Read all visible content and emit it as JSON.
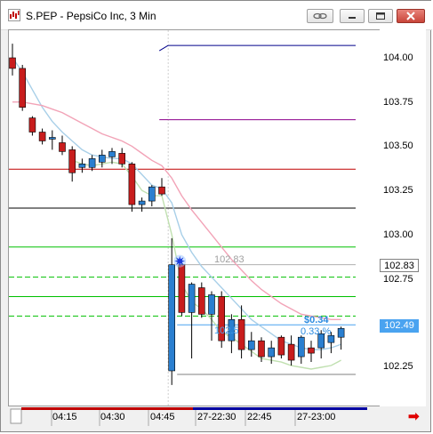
{
  "window": {
    "title": "S.PEP - PepsiCo Inc, 3 Min",
    "controls": [
      "link-icon",
      "minimize-icon",
      "maximize-icon",
      "close-icon"
    ]
  },
  "price_axis": {
    "ticks": [
      "104.00",
      "103.75",
      "103.50",
      "103.25",
      "103.00",
      "102.75",
      "102.25"
    ],
    "last_price_box": "102.83",
    "current_price_box": "102.49"
  },
  "time_axis": {
    "labels": [
      "04:15",
      "04:30",
      "04:45",
      "27-22:30",
      "22:45",
      "27-23:00"
    ]
  },
  "annotations": {
    "marker_price": "102.83",
    "dotted_price": "102.5",
    "change_value": "$0.34",
    "change_percent": "0.33 %"
  },
  "chart_data": {
    "type": "candlestick",
    "ylim": [
      102.1,
      104.2
    ],
    "candles": [
      {
        "o": 104.0,
        "h": 104.08,
        "l": 103.9,
        "c": 103.94,
        "dir": "down"
      },
      {
        "o": 103.94,
        "h": 103.96,
        "l": 103.7,
        "c": 103.72,
        "dir": "down"
      },
      {
        "o": 103.66,
        "h": 103.67,
        "l": 103.56,
        "c": 103.58,
        "dir": "down"
      },
      {
        "o": 103.58,
        "h": 103.6,
        "l": 103.51,
        "c": 103.53,
        "dir": "down"
      },
      {
        "o": 103.54,
        "h": 103.59,
        "l": 103.48,
        "c": 103.55,
        "dir": "up"
      },
      {
        "o": 103.52,
        "h": 103.56,
        "l": 103.45,
        "c": 103.47,
        "dir": "down"
      },
      {
        "o": 103.48,
        "h": 103.5,
        "l": 103.3,
        "c": 103.35,
        "dir": "down"
      },
      {
        "o": 103.38,
        "h": 103.43,
        "l": 103.35,
        "c": 103.4,
        "dir": "up"
      },
      {
        "o": 103.38,
        "h": 103.45,
        "l": 103.36,
        "c": 103.43,
        "dir": "up"
      },
      {
        "o": 103.41,
        "h": 103.48,
        "l": 103.38,
        "c": 103.45,
        "dir": "up"
      },
      {
        "o": 103.44,
        "h": 103.49,
        "l": 103.4,
        "c": 103.47,
        "dir": "up"
      },
      {
        "o": 103.46,
        "h": 103.49,
        "l": 103.38,
        "c": 103.4,
        "dir": "down"
      },
      {
        "o": 103.4,
        "h": 103.41,
        "l": 103.13,
        "c": 103.17,
        "dir": "down"
      },
      {
        "o": 103.17,
        "h": 103.21,
        "l": 103.13,
        "c": 103.19,
        "dir": "up"
      },
      {
        "o": 103.19,
        "h": 103.28,
        "l": 103.16,
        "c": 103.27,
        "dir": "up"
      },
      {
        "o": 103.27,
        "h": 103.32,
        "l": 103.22,
        "c": 103.23,
        "dir": "down"
      },
      {
        "o": 102.23,
        "h": 102.98,
        "l": 102.15,
        "c": 102.83,
        "dir": "up"
      },
      {
        "o": 102.83,
        "h": 102.86,
        "l": 102.54,
        "c": 102.56,
        "dir": "down"
      },
      {
        "o": 102.56,
        "h": 102.73,
        "l": 102.3,
        "c": 102.72,
        "dir": "up"
      },
      {
        "o": 102.7,
        "h": 102.73,
        "l": 102.53,
        "c": 102.55,
        "dir": "down"
      },
      {
        "o": 102.55,
        "h": 102.68,
        "l": 102.4,
        "c": 102.66,
        "dir": "up"
      },
      {
        "o": 102.65,
        "h": 102.68,
        "l": 102.36,
        "c": 102.4,
        "dir": "down"
      },
      {
        "o": 102.4,
        "h": 102.55,
        "l": 102.33,
        "c": 102.52,
        "dir": "up"
      },
      {
        "o": 102.52,
        "h": 102.6,
        "l": 102.3,
        "c": 102.35,
        "dir": "down"
      },
      {
        "o": 102.35,
        "h": 102.45,
        "l": 102.31,
        "c": 102.4,
        "dir": "up"
      },
      {
        "o": 102.4,
        "h": 102.42,
        "l": 102.28,
        "c": 102.31,
        "dir": "down"
      },
      {
        "o": 102.31,
        "h": 102.4,
        "l": 102.27,
        "c": 102.36,
        "dir": "up"
      },
      {
        "o": 102.42,
        "h": 102.43,
        "l": 102.3,
        "c": 102.32,
        "dir": "down"
      },
      {
        "o": 102.38,
        "h": 102.43,
        "l": 102.26,
        "c": 102.29,
        "dir": "down"
      },
      {
        "o": 102.31,
        "h": 102.43,
        "l": 102.27,
        "c": 102.42,
        "dir": "up"
      },
      {
        "o": 102.36,
        "h": 102.4,
        "l": 102.28,
        "c": 102.33,
        "dir": "down"
      },
      {
        "o": 102.36,
        "h": 102.46,
        "l": 102.3,
        "c": 102.44,
        "dir": "up"
      },
      {
        "o": 102.39,
        "h": 102.45,
        "l": 102.33,
        "c": 102.43,
        "dir": "up"
      },
      {
        "o": 102.42,
        "h": 102.48,
        "l": 102.35,
        "c": 102.47,
        "dir": "up"
      }
    ],
    "levels": [
      {
        "price": 104.07,
        "color": "#00008b",
        "style": "solid",
        "from": "mid"
      },
      {
        "price": 103.65,
        "color": "#8b008b",
        "style": "solid",
        "from": "mid"
      },
      {
        "price": 103.37,
        "color": "#c00000",
        "style": "solid",
        "from": "start"
      },
      {
        "price": 103.15,
        "color": "#000000",
        "style": "solid",
        "from": "start"
      },
      {
        "price": 102.93,
        "color": "#00c000",
        "style": "solid",
        "from": "start"
      },
      {
        "price": 102.76,
        "color": "#00c000",
        "style": "dashed",
        "from": "start"
      },
      {
        "price": 102.65,
        "color": "#00c000",
        "style": "solid",
        "from": "start"
      },
      {
        "price": 102.54,
        "color": "#00c000",
        "style": "dashed",
        "from": "start"
      },
      {
        "price": 102.83,
        "color": "#b0b0b0",
        "style": "solid",
        "from": "marker"
      },
      {
        "price": 102.49,
        "color": "#4aa3f0",
        "style": "solid",
        "from": "marker"
      },
      {
        "price": 102.21,
        "color": "#808080",
        "style": "solid",
        "from": "marker"
      }
    ],
    "ma_lines": [
      {
        "color": "#a8cfe8",
        "values": [
          104.0,
          103.92,
          103.82,
          103.72,
          103.64,
          103.58,
          103.53,
          103.48,
          103.45,
          103.44,
          103.43,
          103.43,
          103.4,
          103.34,
          103.28,
          103.26,
          103.18,
          103.0,
          102.9,
          102.82,
          102.76,
          102.7,
          102.64,
          102.58,
          102.52,
          102.48,
          102.44,
          102.4,
          102.38,
          102.36,
          102.35,
          102.35,
          102.36,
          102.38
        ]
      },
      {
        "color": "#f2a3b7",
        "values": [
          103.75,
          103.75,
          103.74,
          103.73,
          103.71,
          103.69,
          103.66,
          103.63,
          103.6,
          103.57,
          103.55,
          103.53,
          103.5,
          103.46,
          103.42,
          103.39,
          103.32,
          103.22,
          103.14,
          103.07,
          103.0,
          102.93,
          102.86,
          102.8,
          102.74,
          102.69,
          102.65,
          102.61,
          102.58,
          102.55,
          102.54,
          102.53,
          102.52,
          102.52
        ]
      },
      {
        "color": "#c0e0b0",
        "values": [
          null,
          null,
          null,
          null,
          null,
          null,
          103.42,
          103.4,
          103.39,
          103.4,
          103.41,
          103.4,
          103.33,
          103.25,
          103.22,
          103.22,
          103.0,
          102.72,
          102.62,
          102.58,
          102.52,
          102.45,
          102.42,
          102.38,
          102.34,
          102.3,
          102.29,
          102.28,
          102.26,
          102.25,
          102.24,
          102.25,
          102.26,
          102.29
        ]
      }
    ]
  }
}
